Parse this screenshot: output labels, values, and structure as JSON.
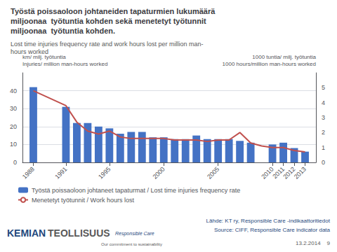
{
  "chart_data": {
    "type": "bar",
    "title": "Työstä poissaoloon johtaneiden tapaturmien lukumäärä\nmiljoonaa  työtuntia kohden sekä menetetyt työtunnit\nmiljoonaa  työtuntia kohden.",
    "subtitle": "Lost time injuries frequency rate and work hours lost per million man-\nhours worked",
    "ylabel": "km/ milj. työtuntia\nInjuries/ million man-hours worked",
    "y2label": "1000 tuntia/ milj. työtuntia\n1000 hours/million man-hours worked",
    "series": [
      {
        "name": "Työstä poissaoloon johtaneet tapaturmat / Lost time injuries frequency rate",
        "type": "bar",
        "color": "#4472C4",
        "x": [
          1988,
          1991,
          1992,
          1993,
          1994,
          1995,
          1996,
          1997,
          1998,
          1999,
          2000,
          2001,
          2002,
          2003,
          2004,
          2005,
          2006,
          2007,
          2008,
          2010,
          2011,
          2012,
          2013
        ],
        "values": [
          42,
          31,
          22,
          22,
          20,
          19,
          16,
          17,
          17,
          14,
          14,
          13,
          13,
          15,
          13,
          13,
          13,
          12,
          11,
          10,
          11,
          8,
          6
        ]
      },
      {
        "name": "Menetetyt työtunnit / Work hours lost",
        "type": "line",
        "color": "#C0504D",
        "axis": "y2",
        "line_style": "solid",
        "x": [
          1988,
          1991,
          1992,
          1993,
          1994,
          1995,
          1996,
          1997,
          1998,
          1999,
          2000,
          2001,
          2002,
          2003,
          2004,
          2005,
          2006,
          2007,
          2008,
          2009,
          2010,
          2011,
          2012,
          2013
        ],
        "values": [
          4.8,
          3.8,
          2.7,
          2.1,
          1.9,
          2.1,
          1.7,
          1.6,
          1.6,
          1.6,
          1.6,
          1.5,
          1.5,
          1.5,
          1.4,
          1.5,
          1.5,
          2.0,
          1.3,
          1.1,
          1.0,
          1.0,
          0.8,
          0.7
        ]
      }
    ],
    "xlim": [
      1987,
      2014
    ],
    "xticks": [
      1988,
      1991,
      1995,
      2000,
      2005,
      2010,
      2011,
      2012,
      2013
    ],
    "ylim": [
      0,
      50
    ],
    "yticks": [
      0,
      10,
      20,
      30,
      40
    ],
    "y2lim": [
      0,
      6
    ],
    "y2ticks": [
      0,
      1,
      2,
      3,
      4,
      5
    ],
    "grid": true,
    "legend": "lower left",
    "annotations": [
      "Lähde: KT ry, Responsible Care -indikaattoritiedot",
      "Source: CIFF, Responsible Care indicator data",
      "13.2.2014    9",
      "KEMIAN",
      "TEOLLISUUS",
      "Responsible Care",
      "Our commitment to sustainability"
    ]
  }
}
